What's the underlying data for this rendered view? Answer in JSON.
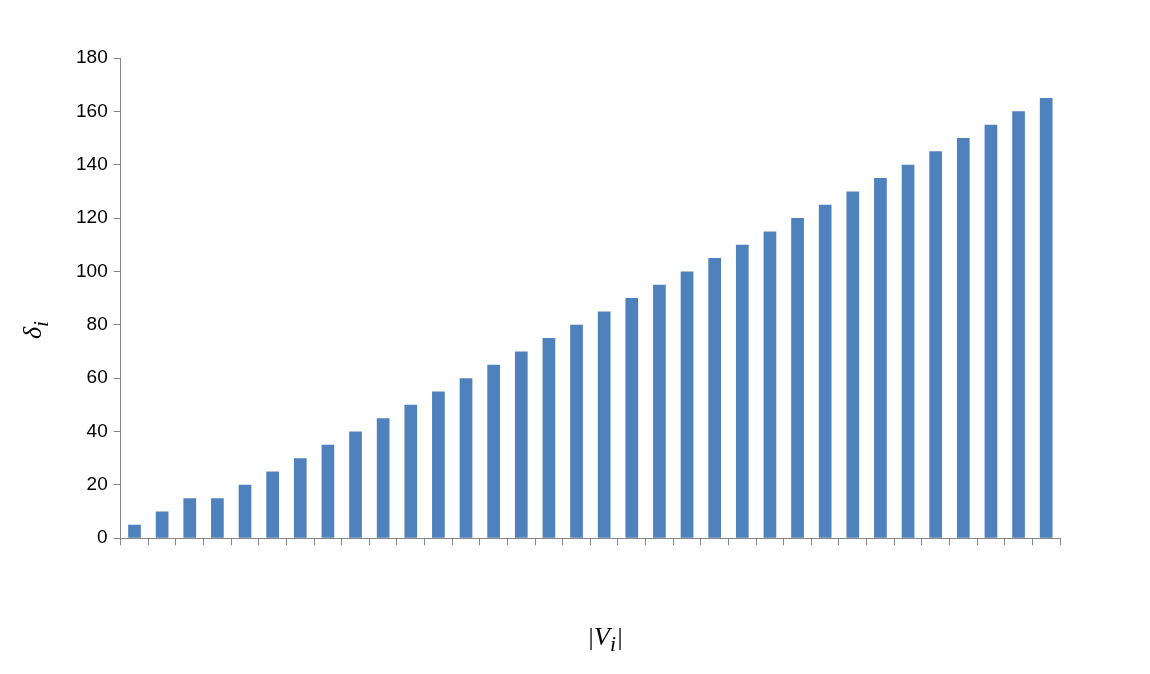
{
  "chart_data": {
    "type": "bar",
    "xlabel": "|V$_{i}$|",
    "ylabel": "δ$_{i}$",
    "categories": [
      null,
      null,
      null,
      null,
      null,
      null,
      null,
      null,
      null,
      null,
      null,
      null,
      null,
      null,
      null,
      null,
      null,
      null,
      null,
      null,
      null,
      null,
      null,
      null,
      null,
      null,
      null,
      null,
      null,
      null,
      null,
      null,
      null,
      null
    ],
    "values": [
      5,
      10,
      15,
      15,
      20,
      25,
      30,
      35,
      40,
      45,
      50,
      55,
      60,
      65,
      70,
      75,
      80,
      85,
      90,
      95,
      100,
      105,
      110,
      115,
      120,
      125,
      130,
      135,
      140,
      145,
      150,
      155,
      160,
      165
    ],
    "color": "#4f81bd",
    "ylim": [
      0,
      180
    ],
    "yticks": [
      0,
      20,
      40,
      60,
      80,
      100,
      120,
      140,
      160,
      180
    ],
    "grid": false,
    "legend": false
  }
}
